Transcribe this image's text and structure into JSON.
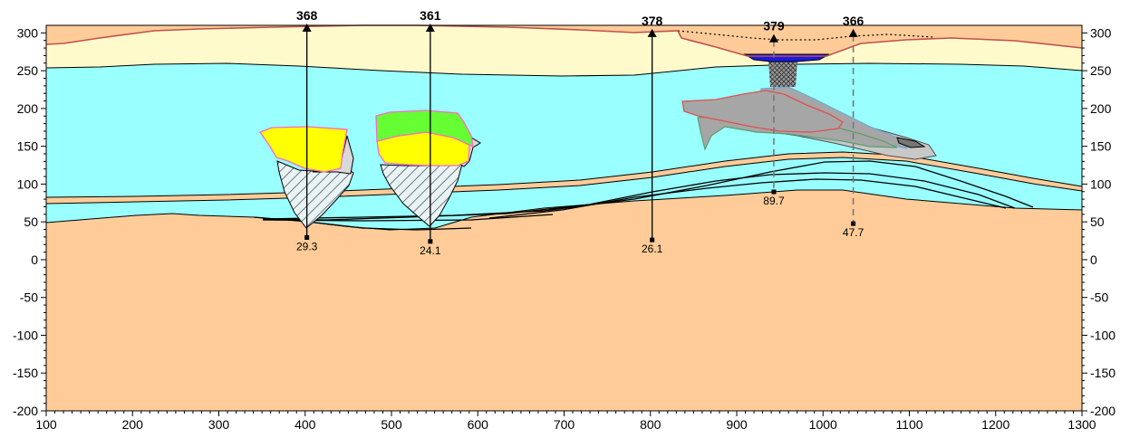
{
  "x_axis": {
    "min": 100,
    "max": 1300,
    "ticks": [
      100,
      200,
      300,
      400,
      500,
      600,
      700,
      800,
      900,
      1000,
      1100,
      1200,
      1300
    ]
  },
  "y_axis": {
    "min": -200,
    "max": 310,
    "ticks": [
      300,
      250,
      200,
      150,
      100,
      50,
      0,
      -50,
      -100,
      -150,
      -200
    ]
  },
  "colors": {
    "surface_layer": "#FFFACC",
    "water_layer": "#99FFFF",
    "bedrock": "#FFCC99",
    "thin_bed": "#FFCC99",
    "ore_yellow": "#FFFF00",
    "ore_green": "#66FF33",
    "ore_gray": "#A6A6A6",
    "ore_light_gray": "#D9D9D9",
    "pit_water": "#1A1AE6",
    "topo_line": "#C0504D",
    "ore_outline": "#FF66CC"
  },
  "wells": [
    {
      "id": "368",
      "x": 402,
      "collar": 304,
      "bottom": 29.3,
      "depth_label": "29.3",
      "style": "solid"
    },
    {
      "id": "361",
      "x": 545,
      "collar": 304,
      "bottom": 24.1,
      "depth_label": "24.1",
      "style": "solid"
    },
    {
      "id": "378",
      "x": 802,
      "collar": 297,
      "bottom": 26.1,
      "depth_label": "26.1",
      "style": "solid"
    },
    {
      "id": "379",
      "x": 943,
      "collar": 290,
      "bottom": 89.7,
      "depth_label": "89.7",
      "style": "dashed"
    },
    {
      "id": "366",
      "x": 1035,
      "collar": 297,
      "bottom": 47.7,
      "depth_label": "47.7",
      "style": "dashed"
    }
  ]
}
